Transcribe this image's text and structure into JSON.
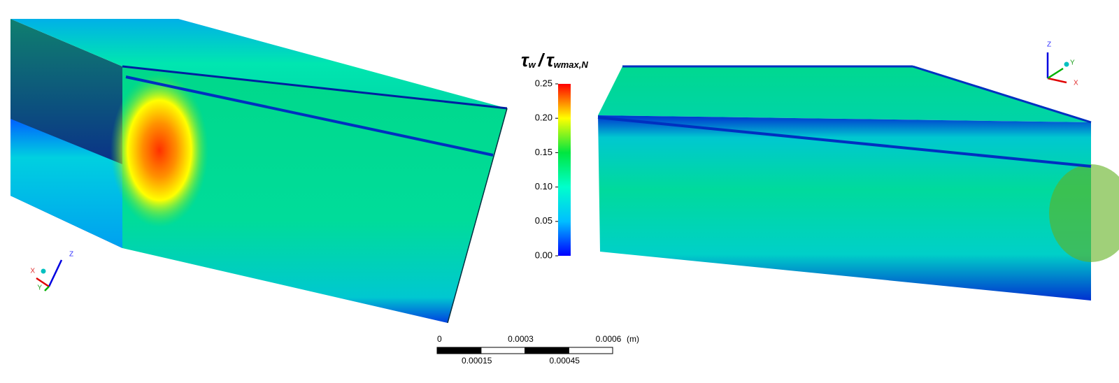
{
  "colorbar": {
    "title": {
      "numerator": {
        "symbol": "τ",
        "sub": "w"
      },
      "separator": "/",
      "denominator": {
        "symbol": "τ",
        "sub": "wmax,N"
      }
    },
    "lim": [
      0,
      0.25
    ],
    "ticks": [
      {
        "value": 0,
        "label": "0.00"
      },
      0.05,
      {
        "value": 0.1,
        "label": "0.10"
      },
      0.15,
      {
        "value": 0.2,
        "label": "0.20"
      },
      0.25
    ],
    "colormap": [
      "#0000ff",
      "#00bfff",
      "#00ffcc",
      "#00e640",
      "#ffff00",
      "#ff0000"
    ]
  },
  "scale_bar": {
    "lim": [
      0,
      0.0006
    ],
    "ticks": [
      0,
      0.00015,
      0.0003,
      0.00045,
      0.0006
    ],
    "unit": "(m)"
  },
  "triads": [
    {
      "z": "Z",
      "x": "X",
      "y": "Y"
    },
    {
      "z": "Z",
      "x": "X",
      "y": "Y"
    }
  ]
}
